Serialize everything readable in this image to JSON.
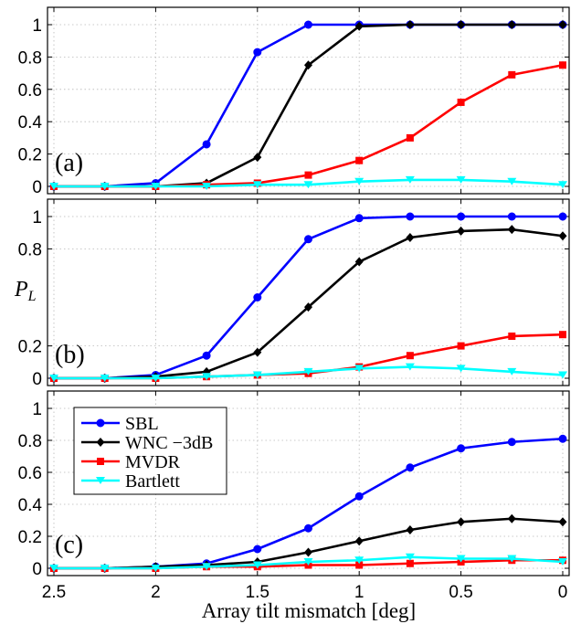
{
  "chart_data": {
    "type": "line",
    "xlabel": "Array tilt mismatch [deg]",
    "xlim": [
      2.5,
      0
    ],
    "x_reversed": true,
    "x": [
      2.5,
      2.25,
      2.0,
      1.75,
      1.5,
      1.25,
      1.0,
      0.75,
      0.5,
      0.25,
      0.0
    ],
    "xticks": [
      2.5,
      2,
      1.5,
      1,
      0.5,
      0
    ],
    "xtick_labels": [
      "2.5",
      "2",
      "1.5",
      "1",
      "0.5",
      "0"
    ],
    "grid": true,
    "legend_placement": "upper-left of panel (c)",
    "series_style": [
      {
        "name": "SBL",
        "color": "#0000ff",
        "marker": "circle"
      },
      {
        "name": "WNC −3dB",
        "color": "#000000",
        "marker": "diamond"
      },
      {
        "name": "MVDR",
        "color": "#ff0000",
        "marker": "square"
      },
      {
        "name": "Bartlett",
        "color": "#00ffff",
        "marker": "triangle-down"
      }
    ],
    "panels": [
      {
        "label": "(a)",
        "ylabel": "",
        "ylim": [
          0,
          1
        ],
        "yticks": [
          0,
          0.2,
          0.4,
          0.6,
          0.8,
          1
        ],
        "ytick_labels": [
          "0",
          "0.2",
          "0.4",
          "0.6",
          "0.8",
          "1"
        ],
        "series": [
          {
            "name": "SBL",
            "values": [
              0,
              0,
              0.02,
              0.26,
              0.83,
              1.0,
              1.0,
              1.0,
              1.0,
              1.0,
              1.0
            ]
          },
          {
            "name": "WNC −3dB",
            "values": [
              0,
              0,
              0,
              0.02,
              0.18,
              0.75,
              0.99,
              1.0,
              1.0,
              1.0,
              1.0
            ]
          },
          {
            "name": "MVDR",
            "values": [
              0,
              0,
              0,
              0.01,
              0.02,
              0.07,
              0.16,
              0.3,
              0.52,
              0.69,
              0.75
            ]
          },
          {
            "name": "Bartlett",
            "values": [
              0,
              0,
              0,
              0,
              0.01,
              0.01,
              0.03,
              0.04,
              0.04,
              0.03,
              0.01
            ]
          }
        ]
      },
      {
        "label": "(b)",
        "ylabel": "P_L",
        "ylim": [
          0,
          1
        ],
        "yticks": [
          0,
          0.2,
          0.8,
          1
        ],
        "ytick_labels": [
          "0",
          "0.2",
          "0.8",
          "1"
        ],
        "series": [
          {
            "name": "SBL",
            "values": [
              0,
              0,
              0.02,
              0.14,
              0.5,
              0.86,
              0.99,
              1.0,
              1.0,
              1.0,
              1.0
            ]
          },
          {
            "name": "WNC −3dB",
            "values": [
              0,
              0,
              0.01,
              0.04,
              0.16,
              0.44,
              0.72,
              0.87,
              0.91,
              0.92,
              0.88
            ]
          },
          {
            "name": "MVDR",
            "values": [
              0,
              0,
              0,
              0.01,
              0.02,
              0.03,
              0.07,
              0.14,
              0.2,
              0.26,
              0.27
            ]
          },
          {
            "name": "Bartlett",
            "values": [
              0,
              0,
              0,
              0.01,
              0.02,
              0.04,
              0.06,
              0.07,
              0.06,
              0.04,
              0.02
            ]
          }
        ]
      },
      {
        "label": "(c)",
        "ylabel": "",
        "ylim": [
          0,
          1
        ],
        "yticks": [
          0,
          0.2,
          0.4,
          0.6,
          0.8,
          1
        ],
        "ytick_labels": [
          "0",
          "0.2",
          "0.4",
          "0.6",
          "0.8",
          "1"
        ],
        "series": [
          {
            "name": "SBL",
            "values": [
              0,
              0,
              0.01,
              0.03,
              0.12,
              0.25,
              0.45,
              0.63,
              0.75,
              0.79,
              0.81
            ]
          },
          {
            "name": "WNC −3dB",
            "values": [
              0,
              0,
              0.01,
              0.02,
              0.04,
              0.1,
              0.17,
              0.24,
              0.29,
              0.31,
              0.29
            ]
          },
          {
            "name": "MVDR",
            "values": [
              0,
              0,
              0,
              0.01,
              0.01,
              0.02,
              0.02,
              0.03,
              0.04,
              0.05,
              0.05
            ]
          },
          {
            "name": "Bartlett",
            "values": [
              0,
              0,
              0,
              0.01,
              0.02,
              0.04,
              0.05,
              0.07,
              0.06,
              0.06,
              0.04
            ]
          }
        ]
      }
    ]
  }
}
